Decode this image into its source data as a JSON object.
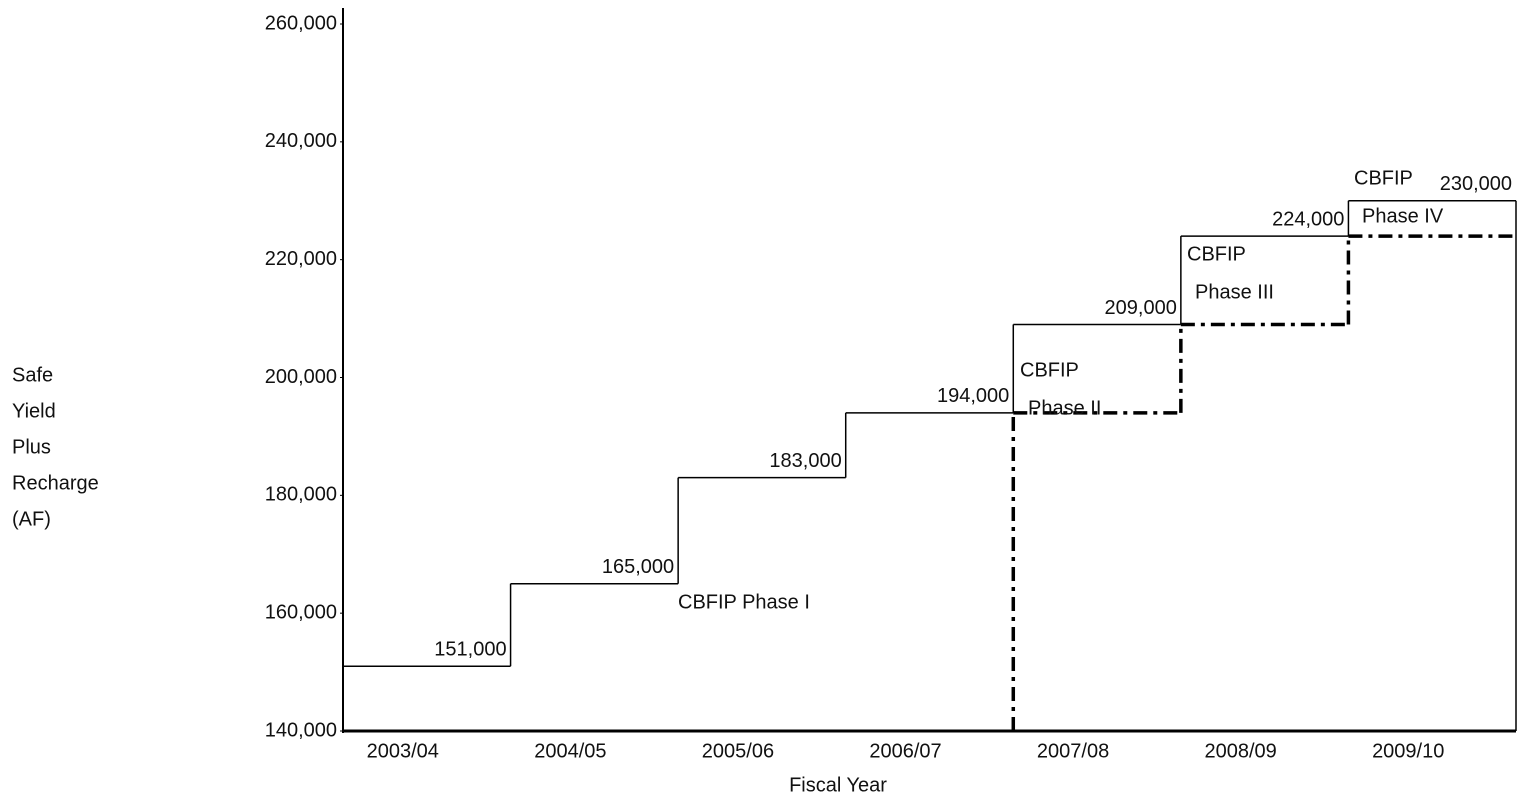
{
  "chart_data": {
    "type": "step",
    "y_label": [
      "Safe",
      "Yield",
      "Plus",
      "Recharge",
      "(AF)"
    ],
    "x_label": "Fiscal Year",
    "categories": [
      "2003/04",
      "2004/05",
      "2005/06",
      "2006/07",
      "2007/08",
      "2008/09",
      "2009/10"
    ],
    "series": [
      {
        "color": "#000000",
        "style": "solid",
        "values": [
          151000,
          165000,
          183000,
          194000,
          209000,
          224000,
          230000
        ],
        "value_labels": [
          "151,000",
          "165,000",
          "183,000",
          "194,000",
          "209,000",
          "224,000",
          "230,000"
        ]
      },
      {
        "color": "#000000",
        "style": "dashdot",
        "values": [
          null,
          null,
          null,
          null,
          194000,
          209000,
          224000
        ]
      }
    ],
    "ylim": [
      140000,
      260000
    ],
    "yticks": [
      {
        "value": 140000,
        "label": "140,000"
      },
      {
        "value": 160000,
        "label": "160,000"
      },
      {
        "value": 180000,
        "label": "180,000"
      },
      {
        "value": 200000,
        "label": "200,000"
      },
      {
        "value": 220000,
        "label": "220,000"
      },
      {
        "value": 240000,
        "label": "240,000"
      },
      {
        "value": 260000,
        "label": "260,000"
      }
    ],
    "annotations": [
      [
        "CBFIP Phase I"
      ],
      [
        "CBFIP",
        "Phase II"
      ],
      [
        "CBFIP",
        "Phase III"
      ],
      [
        "CBFIP",
        "Phase IV"
      ]
    ]
  }
}
